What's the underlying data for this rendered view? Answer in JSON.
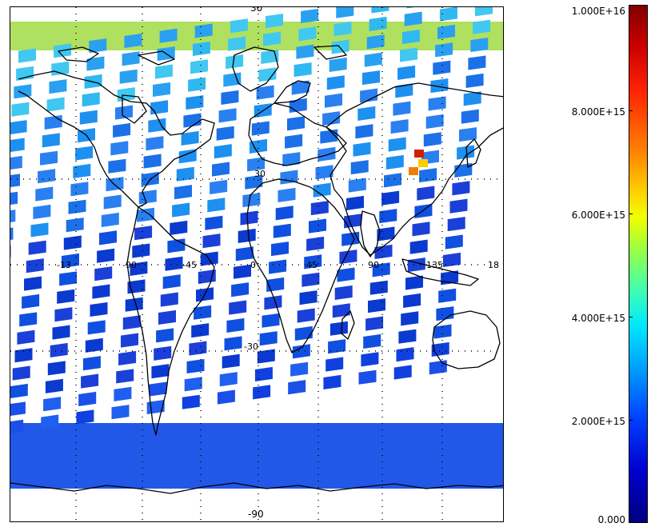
{
  "map": {
    "top_label": "30",
    "bottom_label": "-90",
    "lon_labels": [
      "-13",
      "-90",
      "-45",
      "0",
      "45",
      "90",
      "135",
      "18"
    ],
    "lat_labels": [
      "30",
      "-30"
    ]
  },
  "colorbar": {
    "labels": [
      "1.000E+16",
      "8.000E+15",
      "6.000E+15",
      "4.000E+15",
      "2.000E+15",
      "0.000"
    ],
    "min": 0,
    "max": 1e+16,
    "colors": [
      "#800000",
      "#ff2000",
      "#ff8000",
      "#ffd000",
      "#f0ff00",
      "#40ffb0",
      "#00e8ff",
      "#00a0ff",
      "#0040ff",
      "#0000d0",
      "#000080"
    ]
  }
}
